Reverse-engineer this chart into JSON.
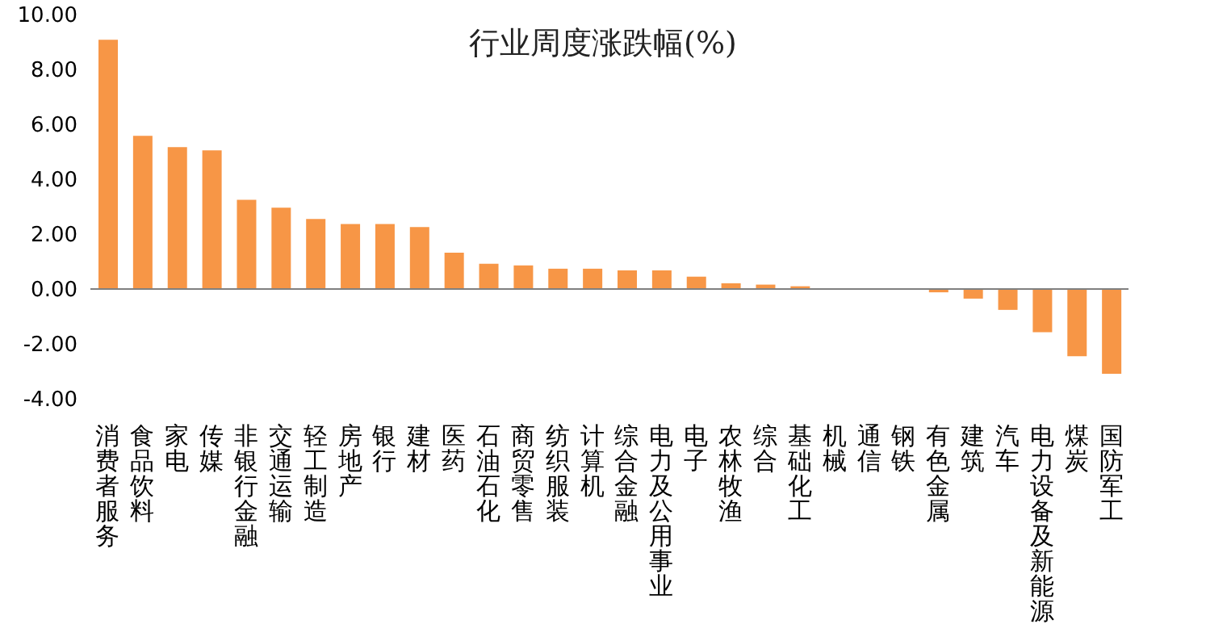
{
  "chart_data": {
    "type": "bar",
    "title": "行业周度涨跌幅(%)",
    "categories": [
      "消费者服务",
      "食品饮料",
      "家电",
      "传媒",
      "非银行金融",
      "交通运输",
      "轻工制造",
      "房地产",
      "银行",
      "建材",
      "医药",
      "石油石化",
      "商贸零售",
      "纺织服装",
      "计算机",
      "综合金融",
      "电力及公用事业",
      "电子",
      "农林牧渔",
      "综合",
      "基础化工",
      "机械",
      "通信",
      "钢铁",
      "有色金属",
      "建筑",
      "汽车",
      "电力设备及新能源",
      "煤炭",
      "国防军工"
    ],
    "values": [
      9.08,
      5.58,
      5.17,
      5.05,
      3.25,
      2.96,
      2.55,
      2.37,
      2.37,
      2.26,
      1.32,
      0.92,
      0.86,
      0.74,
      0.74,
      0.68,
      0.68,
      0.45,
      0.21,
      0.16,
      0.1,
      0,
      0,
      0,
      -0.12,
      -0.35,
      -0.76,
      -1.57,
      -2.45,
      -3.09
    ],
    "color": "#f79646",
    "ylim": [
      -4,
      10
    ],
    "yticks": [
      {
        "value": -4,
        "label": "-4.00"
      },
      {
        "value": -2,
        "label": "-2.00"
      },
      {
        "value": 0,
        "label": "0.00"
      },
      {
        "value": 2,
        "label": "2.00"
      },
      {
        "value": 4,
        "label": "4.00"
      },
      {
        "value": 6,
        "label": "6.00"
      },
      {
        "value": 8,
        "label": "8.00"
      },
      {
        "value": 10,
        "label": "10.00"
      }
    ],
    "ref_lines": [
      {
        "axis": "y",
        "value": 0,
        "label": null,
        "color": "#808080"
      }
    ],
    "grid": false,
    "legend": false
  }
}
